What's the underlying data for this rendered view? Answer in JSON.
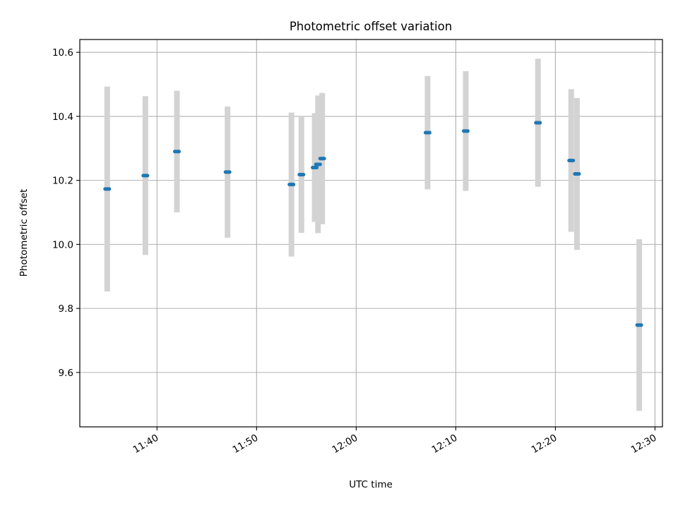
{
  "chart_data": {
    "type": "scatter",
    "title": "Photometric offset variation",
    "xlabel": "UTC time",
    "ylabel": "Photometric offset",
    "xlim": [
      "11:32:15",
      "12:30:45"
    ],
    "ylim": [
      9.43,
      10.64
    ],
    "x_ticks": [
      "11:40",
      "11:50",
      "12:00",
      "12:10",
      "12:20",
      "12:30"
    ],
    "y_ticks": [
      9.6,
      9.8,
      10.0,
      10.2,
      10.4,
      10.6
    ],
    "grid": true,
    "colors": {
      "point": "#1f77b4",
      "errorbar": "#d3d3d3",
      "grid": "#b0b0b0"
    },
    "points": [
      {
        "t": "11:35:00",
        "y": 10.173,
        "err": 0.32
      },
      {
        "t": "11:38:50",
        "y": 10.215,
        "err": 0.248
      },
      {
        "t": "11:42:00",
        "y": 10.29,
        "err": 0.19
      },
      {
        "t": "11:47:05",
        "y": 10.226,
        "err": 0.205
      },
      {
        "t": "11:53:30",
        "y": 10.187,
        "err": 0.225
      },
      {
        "t": "11:54:30",
        "y": 10.218,
        "err": 0.182
      },
      {
        "t": "11:55:50",
        "y": 10.24,
        "err": 0.17
      },
      {
        "t": "11:56:10",
        "y": 10.25,
        "err": 0.215
      },
      {
        "t": "11:56:35",
        "y": 10.268,
        "err": 0.205
      },
      {
        "t": "12:07:10",
        "y": 10.349,
        "err": 0.177
      },
      {
        "t": "12:11:00",
        "y": 10.354,
        "err": 0.187
      },
      {
        "t": "12:18:15",
        "y": 10.38,
        "err": 0.2
      },
      {
        "t": "12:21:35",
        "y": 10.262,
        "err": 0.223
      },
      {
        "t": "12:22:10",
        "y": 10.22,
        "err": 0.237
      },
      {
        "t": "12:28:25",
        "y": 9.748,
        "err": 0.268
      }
    ]
  }
}
